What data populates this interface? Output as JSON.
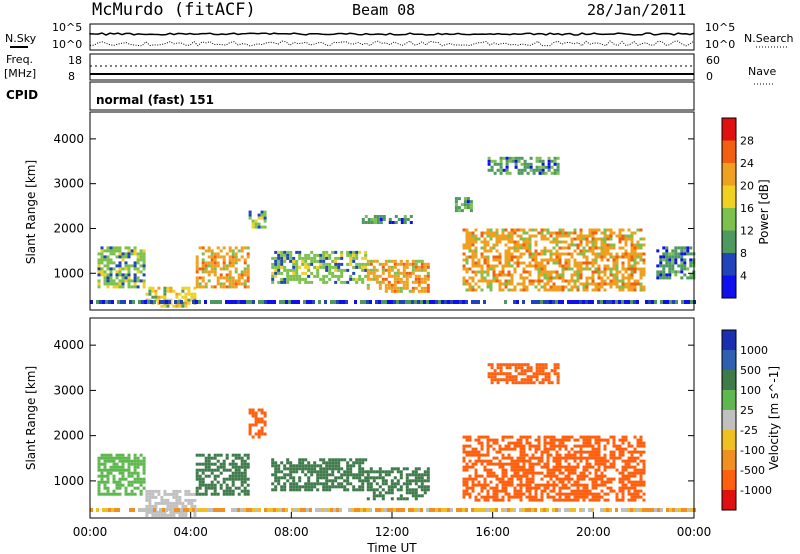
{
  "header": {
    "site": "McMurdo (fitACF)",
    "beam": "Beam 08",
    "date": "28/Jan/2011"
  },
  "nsky_panel": {
    "left_label": "N.Sky",
    "right_label": "N.Search",
    "left_ticks": [
      "10^5",
      "10^0"
    ],
    "right_ticks": [
      "10^5",
      "10^0"
    ]
  },
  "freq_panel": {
    "left_label": "Freq.",
    "left_unit": "[MHz]",
    "right_label": "Nave",
    "left_ticks": [
      18,
      8
    ],
    "right_ticks": [
      60,
      0
    ]
  },
  "cpid": {
    "label": "CPID",
    "value": "normal (fast) 151"
  },
  "colors": {
    "power": [
      "#1010ee",
      "#2244bb",
      "#4e9a5e",
      "#7cc04e",
      "#f0d020",
      "#f0a020",
      "#f06010",
      "#e01010"
    ],
    "velocity": [
      "#1a2fb0",
      "#2f5fb0",
      "#3f7a4a",
      "#5fb84f",
      "#c0c0c0",
      "#f0c020",
      "#f09020",
      "#ff6010",
      "#e01010"
    ]
  },
  "chart_data": [
    {
      "type": "heatmap",
      "quantity": "power",
      "ylabel": "Slant Range [km]",
      "xlabel": "Time UT",
      "x_ticks": [
        "00:00",
        "04:00",
        "08:00",
        "12:00",
        "16:00",
        "20:00",
        "00:00"
      ],
      "xlim_hours": [
        0,
        24
      ],
      "y_ticks": [
        1000,
        2000,
        3000,
        4000
      ],
      "ylim": [
        180,
        4600
      ],
      "colorbar": {
        "label": "Power [dB]",
        "ticks": [
          4,
          8,
          12,
          16,
          20,
          24,
          28
        ],
        "range": [
          0,
          32
        ]
      },
      "echo_regions": [
        {
          "t": [
            0.3,
            2.2
          ],
          "r": [
            700,
            1600
          ],
          "level": 12
        },
        {
          "t": [
            2.2,
            4.2
          ],
          "r": [
            250,
            700
          ],
          "level": 18
        },
        {
          "t": [
            4.2,
            6.3
          ],
          "r": [
            700,
            1600
          ],
          "level": 22
        },
        {
          "t": [
            6.3,
            7.0
          ],
          "r": [
            2000,
            2400
          ],
          "level": 14
        },
        {
          "t": [
            7.2,
            11.0
          ],
          "r": [
            800,
            1500
          ],
          "level": 12
        },
        {
          "t": [
            11.0,
            13.4
          ],
          "r": [
            600,
            1300
          ],
          "level": 22
        },
        {
          "t": [
            10.8,
            12.8
          ],
          "r": [
            2100,
            2300
          ],
          "level": 8
        },
        {
          "t": [
            14.5,
            15.2
          ],
          "r": [
            2400,
            2700
          ],
          "level": 10
        },
        {
          "t": [
            14.8,
            22.0
          ],
          "r": [
            600,
            2000
          ],
          "level": 22
        },
        {
          "t": [
            15.8,
            18.6
          ],
          "r": [
            3200,
            3600
          ],
          "level": 8
        },
        {
          "t": [
            22.5,
            24.0
          ],
          "r": [
            900,
            1600
          ],
          "level": 10
        }
      ]
    },
    {
      "type": "heatmap",
      "quantity": "velocity",
      "ylabel": "Slant Range [km]",
      "xlabel": "Time UT",
      "x_ticks": [
        "00:00",
        "04:00",
        "08:00",
        "12:00",
        "16:00",
        "20:00",
        "00:00"
      ],
      "xlim_hours": [
        0,
        24
      ],
      "y_ticks": [
        1000,
        2000,
        3000,
        4000
      ],
      "ylim": [
        180,
        4600
      ],
      "colorbar": {
        "label": "Velocity [m s^-1]",
        "ticks": [
          1000,
          500,
          100,
          25,
          -25,
          -100,
          -500,
          -1000
        ]
      },
      "echo_regions": [
        {
          "t": [
            0.3,
            2.2
          ],
          "r": [
            700,
            1600
          ],
          "level": 100
        },
        {
          "t": [
            2.2,
            4.2
          ],
          "r": [
            250,
            800
          ],
          "level": 0
        },
        {
          "t": [
            4.2,
            6.3
          ],
          "r": [
            700,
            1600
          ],
          "level": 300
        },
        {
          "t": [
            6.3,
            7.0
          ],
          "r": [
            2000,
            2600
          ],
          "level": -300
        },
        {
          "t": [
            7.2,
            11.0
          ],
          "r": [
            800,
            1500
          ],
          "level": 200
        },
        {
          "t": [
            11.0,
            13.4
          ],
          "r": [
            600,
            1300
          ],
          "level": 200
        },
        {
          "t": [
            14.8,
            22.0
          ],
          "r": [
            600,
            2000
          ],
          "level": -300
        },
        {
          "t": [
            15.8,
            18.6
          ],
          "r": [
            3200,
            3600
          ],
          "level": -300
        }
      ]
    }
  ]
}
